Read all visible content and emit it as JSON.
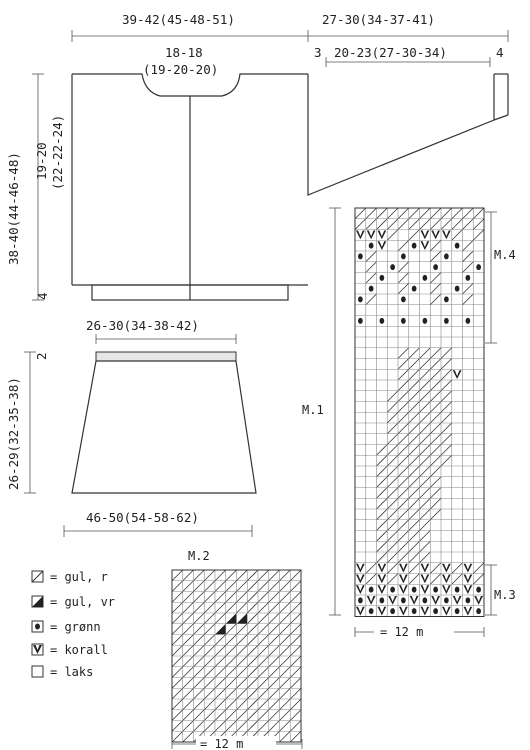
{
  "measurements": {
    "body_width": "39-42(45-48-51)",
    "sleeve_length": "27-30(34-37-41)",
    "neck_width": "18-18",
    "neck_width_2": "(19-20-20)",
    "sleeve_left": "3",
    "sleeve_inner": "20-23(27-30-34)",
    "sleeve_right": "4",
    "total_height": "38-40(44-46-48)",
    "armhole_height": "19-20",
    "armhole_height_2": "(22-22-24)",
    "rib_height": "4",
    "skirt_top": "26-30(34-38-42)",
    "skirt_rib": "2",
    "skirt_height": "26-29(32-35-38)",
    "skirt_bottom": "46-50(54-58-62)"
  },
  "charts": {
    "m1_label": "M.1",
    "m2_label": "M.2",
    "m3_label": "M.3",
    "m4_label": "M.4",
    "width_label": "= 12 m",
    "width_label_2": "= 12 m"
  },
  "legend": [
    {
      "symbol": "diag-icon",
      "text": "= gul, r"
    },
    {
      "symbol": "half-fill-icon",
      "text": "= gul, vr"
    },
    {
      "symbol": "dot-icon",
      "text": "= grønn"
    },
    {
      "symbol": "v-icon",
      "text": "= korall"
    },
    {
      "symbol": "empty-icon",
      "text": "= laks"
    }
  ]
}
